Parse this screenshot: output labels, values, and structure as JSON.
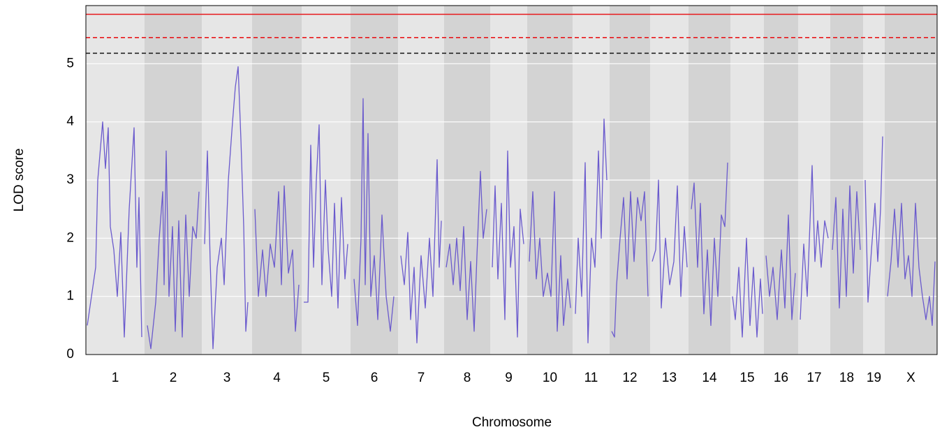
{
  "chart_data": {
    "type": "line",
    "x_label": "Chromosome",
    "y_label": "LOD score",
    "xlim": [
      0,
      1219
    ],
    "ylim": [
      0,
      6
    ],
    "yticks": [
      0,
      1,
      2,
      3,
      4,
      5
    ],
    "grid": true,
    "color": "#6a5acd",
    "band_colors": [
      "#e6e6e6",
      "#d3d3d3"
    ],
    "chromosomes": [
      {
        "name": "1",
        "start": 0,
        "end": 84
      },
      {
        "name": "2",
        "start": 84,
        "end": 166
      },
      {
        "name": "3",
        "start": 166,
        "end": 238
      },
      {
        "name": "4",
        "start": 238,
        "end": 309
      },
      {
        "name": "5",
        "start": 309,
        "end": 379
      },
      {
        "name": "6",
        "start": 379,
        "end": 447
      },
      {
        "name": "7",
        "start": 447,
        "end": 513
      },
      {
        "name": "8",
        "start": 513,
        "end": 579
      },
      {
        "name": "9",
        "start": 579,
        "end": 632
      },
      {
        "name": "10",
        "start": 632,
        "end": 697
      },
      {
        "name": "11",
        "start": 697,
        "end": 750
      },
      {
        "name": "12",
        "start": 750,
        "end": 808
      },
      {
        "name": "13",
        "start": 808,
        "end": 863
      },
      {
        "name": "14",
        "start": 863,
        "end": 923
      },
      {
        "name": "15",
        "start": 923,
        "end": 971
      },
      {
        "name": "16",
        "start": 971,
        "end": 1020
      },
      {
        "name": "17",
        "start": 1020,
        "end": 1066
      },
      {
        "name": "18",
        "start": 1066,
        "end": 1113
      },
      {
        "name": "19",
        "start": 1113,
        "end": 1144
      },
      {
        "name": "X",
        "start": 1144,
        "end": 1219
      }
    ],
    "thresholds": [
      {
        "value": 5.85,
        "color": "#e8171b",
        "dashed": false
      },
      {
        "value": 5.45,
        "color": "#e8171b",
        "dashed": true
      },
      {
        "value": 5.18,
        "color": "#222222",
        "dashed": true
      }
    ],
    "x": [
      2,
      8,
      14,
      17,
      24,
      28,
      32,
      35,
      40,
      45,
      50,
      55,
      62,
      69,
      73,
      76,
      80,
      null,
      88,
      93,
      100,
      105,
      110,
      112,
      115,
      119,
      124,
      128,
      133,
      138,
      143,
      148,
      153,
      158,
      162,
      null,
      170,
      174,
      178,
      182,
      188,
      194,
      198,
      204,
      210,
      214,
      218,
      222,
      226,
      229,
      232,
      null,
      242,
      247,
      253,
      258,
      264,
      270,
      276,
      280,
      284,
      290,
      296,
      300,
      305,
      null,
      312,
      318,
      322,
      326,
      330,
      334,
      338,
      343,
      347,
      352,
      356,
      361,
      366,
      371,
      375,
      null,
      384,
      389,
      394,
      397,
      400,
      404,
      408,
      413,
      418,
      424,
      430,
      436,
      441,
      null,
      451,
      456,
      461,
      465,
      470,
      474,
      480,
      486,
      492,
      497,
      503,
      506,
      509,
      null,
      516,
      521,
      526,
      531,
      536,
      541,
      546,
      551,
      556,
      560,
      565,
      569,
      574,
      null,
      582,
      586,
      590,
      595,
      600,
      604,
      608,
      613,
      618,
      622,
      627,
      null,
      635,
      640,
      645,
      650,
      655,
      661,
      666,
      671,
      675,
      680,
      684,
      690,
      694,
      null,
      701,
      705,
      710,
      715,
      719,
      724,
      729,
      734,
      738,
      742,
      746,
      null,
      753,
      757,
      760,
      765,
      770,
      775,
      780,
      785,
      790,
      795,
      800,
      805,
      null,
      811,
      816,
      820,
      824,
      830,
      836,
      842,
      847,
      852,
      857,
      861,
      null,
      867,
      871,
      876,
      880,
      885,
      890,
      895,
      900,
      905,
      910,
      915,
      919,
      null,
      926,
      930,
      935,
      940,
      946,
      951,
      956,
      961,
      966,
      969,
      null,
      974,
      979,
      984,
      990,
      996,
      1001,
      1006,
      1011,
      1016,
      null,
      1023,
      1028,
      1033,
      1040,
      1044,
      1048,
      1053,
      1058,
      1063,
      null,
      1069,
      1074,
      1079,
      1084,
      1089,
      1094,
      1099,
      1104,
      1109,
      null,
      1116,
      1120,
      1125,
      1130,
      1134,
      1138,
      1141,
      null,
      1148,
      1153,
      1158,
      1163,
      1168,
      1173,
      1178,
      1183,
      1188,
      1193,
      1198,
      1203,
      1208,
      1212,
      1216
    ],
    "values": [
      0.5,
      1.0,
      1.5,
      3.0,
      4.0,
      3.2,
      3.9,
      2.2,
      1.8,
      1.0,
      2.1,
      0.3,
      2.5,
      3.9,
      1.5,
      2.7,
      0.3,
      null,
      0.5,
      0.1,
      0.9,
      2.0,
      2.8,
      1.2,
      3.5,
      1.0,
      2.2,
      0.4,
      2.3,
      0.3,
      2.4,
      1.0,
      2.2,
      2.0,
      2.8,
      null,
      1.9,
      3.5,
      1.6,
      0.1,
      1.5,
      2.0,
      1.2,
      3.0,
      4.0,
      4.6,
      4.95,
      3.7,
      2.2,
      0.4,
      0.9,
      null,
      2.5,
      1.0,
      1.8,
      1.0,
      1.9,
      1.5,
      2.8,
      1.2,
      2.9,
      1.4,
      1.8,
      0.4,
      1.2,
      null,
      0.9,
      0.9,
      3.6,
      1.5,
      3.0,
      3.95,
      1.2,
      3.0,
      1.8,
      1.0,
      2.6,
      0.8,
      2.7,
      1.3,
      1.9,
      null,
      1.3,
      0.5,
      2.0,
      4.4,
      1.2,
      3.8,
      1.0,
      1.7,
      0.6,
      2.4,
      1.0,
      0.4,
      1.0,
      null,
      1.7,
      1.2,
      2.1,
      0.6,
      1.5,
      0.2,
      1.7,
      0.8,
      2.0,
      1.0,
      3.35,
      1.5,
      2.3,
      null,
      1.5,
      1.9,
      1.2,
      2.0,
      1.1,
      2.2,
      0.6,
      1.6,
      0.4,
      1.7,
      3.15,
      2.0,
      2.5,
      null,
      1.5,
      2.9,
      1.3,
      2.6,
      0.6,
      3.5,
      1.5,
      2.2,
      0.3,
      2.5,
      1.9,
      null,
      1.6,
      2.8,
      1.3,
      2.0,
      1.0,
      1.4,
      1.0,
      2.8,
      0.4,
      1.7,
      0.5,
      1.3,
      0.8,
      null,
      0.7,
      2.0,
      1.0,
      3.3,
      0.2,
      2.0,
      1.5,
      3.5,
      2.0,
      4.05,
      3.0,
      null,
      0.4,
      0.3,
      1.2,
      2.0,
      2.7,
      1.3,
      2.8,
      1.6,
      2.7,
      2.3,
      2.8,
      1.0,
      null,
      1.6,
      1.8,
      3.0,
      0.8,
      2.0,
      1.2,
      1.6,
      2.9,
      1.0,
      2.2,
      1.5,
      null,
      2.5,
      2.95,
      1.5,
      2.6,
      0.7,
      1.8,
      0.5,
      2.0,
      1.0,
      2.4,
      2.2,
      3.3,
      null,
      1.0,
      0.6,
      1.5,
      0.3,
      2.0,
      0.5,
      1.5,
      0.3,
      1.3,
      0.7,
      null,
      1.7,
      1.0,
      1.5,
      0.6,
      1.8,
      0.8,
      2.4,
      0.6,
      1.4,
      null,
      0.6,
      1.9,
      1.0,
      3.25,
      1.6,
      2.3,
      1.5,
      2.3,
      2.0,
      null,
      1.8,
      2.7,
      0.8,
      2.5,
      1.0,
      2.9,
      1.4,
      2.8,
      1.8,
      null,
      3.0,
      0.9,
      1.8,
      2.6,
      1.6,
      2.5,
      3.75,
      null,
      1.0,
      1.6,
      2.5,
      1.5,
      2.6,
      1.3,
      1.7,
      1.0,
      2.6,
      1.5,
      1.0,
      0.6,
      1.0,
      0.5,
      1.6
    ]
  }
}
